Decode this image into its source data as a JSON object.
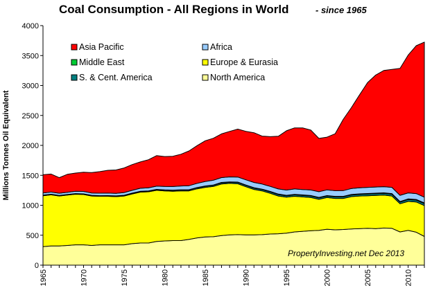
{
  "chart_data": {
    "type": "area",
    "stacked": true,
    "title": "Coal Consumption - All Regions in World",
    "subtitle": "- since 1965",
    "ylabel": "Millions Tonnes Oil Equivalent",
    "xlabel": "",
    "ylim": [
      0,
      4000
    ],
    "yticks": [
      0,
      500,
      1000,
      1500,
      2000,
      2500,
      3000,
      3500,
      4000
    ],
    "xlim": [
      1965,
      2012
    ],
    "xticks": [
      1965,
      1970,
      1975,
      1980,
      1985,
      1990,
      1995,
      2000,
      2005,
      2010
    ],
    "grid": false,
    "legend_position": "upper-left inside plot",
    "annotation": "PropertyInvesting.net  Dec 2013",
    "x": [
      1965,
      1966,
      1967,
      1968,
      1969,
      1970,
      1971,
      1972,
      1973,
      1974,
      1975,
      1976,
      1977,
      1978,
      1979,
      1980,
      1981,
      1982,
      1983,
      1984,
      1985,
      1986,
      1987,
      1988,
      1989,
      1990,
      1991,
      1992,
      1993,
      1994,
      1995,
      1996,
      1997,
      1998,
      1999,
      2000,
      2001,
      2002,
      2003,
      2004,
      2005,
      2006,
      2007,
      2008,
      2009,
      2010,
      2011,
      2012
    ],
    "series": [
      {
        "name": "North America",
        "color": "#ffff99",
        "values": [
          310,
          320,
          320,
          330,
          340,
          340,
          330,
          340,
          340,
          340,
          340,
          360,
          370,
          370,
          395,
          405,
          410,
          410,
          430,
          455,
          470,
          475,
          495,
          505,
          510,
          505,
          505,
          510,
          520,
          525,
          535,
          555,
          565,
          575,
          580,
          600,
          590,
          595,
          605,
          610,
          615,
          610,
          620,
          615,
          555,
          580,
          550,
          480
        ]
      },
      {
        "name": "Europe & Eurasia",
        "color": "#ffff00",
        "values": [
          850,
          855,
          835,
          840,
          845,
          840,
          825,
          810,
          810,
          805,
          815,
          830,
          850,
          855,
          855,
          835,
          825,
          830,
          810,
          820,
          830,
          840,
          860,
          860,
          850,
          805,
          760,
          730,
          680,
          630,
          600,
          595,
          575,
          555,
          520,
          530,
          525,
          520,
          540,
          545,
          545,
          555,
          550,
          540,
          470,
          485,
          505,
          515
        ]
      },
      {
        "name": "S. & Cent. America",
        "color": "#008080",
        "values": [
          8,
          8,
          8,
          8,
          8,
          9,
          9,
          9,
          10,
          10,
          11,
          11,
          12,
          12,
          13,
          14,
          15,
          15,
          16,
          17,
          18,
          19,
          20,
          20,
          21,
          22,
          22,
          22,
          23,
          24,
          24,
          25,
          25,
          25,
          24,
          24,
          25,
          25,
          26,
          27,
          28,
          28,
          29,
          30,
          28,
          31,
          32,
          33
        ]
      },
      {
        "name": "Middle East",
        "color": "#00cc33",
        "values": [
          2,
          2,
          2,
          2,
          2,
          2,
          2,
          2,
          2,
          2,
          2,
          2,
          3,
          3,
          3,
          3,
          3,
          4,
          4,
          4,
          5,
          5,
          6,
          6,
          6,
          7,
          7,
          7,
          8,
          8,
          8,
          8,
          8,
          8,
          8,
          8,
          9,
          9,
          9,
          9,
          9,
          9,
          9,
          10,
          10,
          10,
          10,
          11
        ]
      },
      {
        "name": "Africa",
        "color": "#99ccff",
        "values": [
          35,
          36,
          36,
          37,
          38,
          40,
          40,
          41,
          42,
          43,
          45,
          47,
          49,
          51,
          53,
          57,
          60,
          63,
          67,
          70,
          75,
          80,
          81,
          83,
          85,
          86,
          87,
          86,
          85,
          86,
          87,
          90,
          90,
          92,
          95,
          96,
          95,
          96,
          100,
          101,
          102,
          103,
          103,
          104,
          103,
          101,
          98,
          96
        ]
      },
      {
        "name": "Asia Pacific",
        "color": "#ff0000",
        "values": [
          305,
          300,
          260,
          300,
          305,
          320,
          340,
          360,
          380,
          390,
          410,
          430,
          440,
          470,
          510,
          500,
          505,
          530,
          580,
          630,
          680,
          700,
          730,
          760,
          800,
          810,
          830,
          800,
          830,
          880,
          990,
          1020,
          1030,
          1000,
          890,
          880,
          950,
          1190,
          1350,
          1550,
          1750,
          1870,
          1940,
          1970,
          2120,
          2300,
          2470,
          2590
        ]
      }
    ]
  }
}
